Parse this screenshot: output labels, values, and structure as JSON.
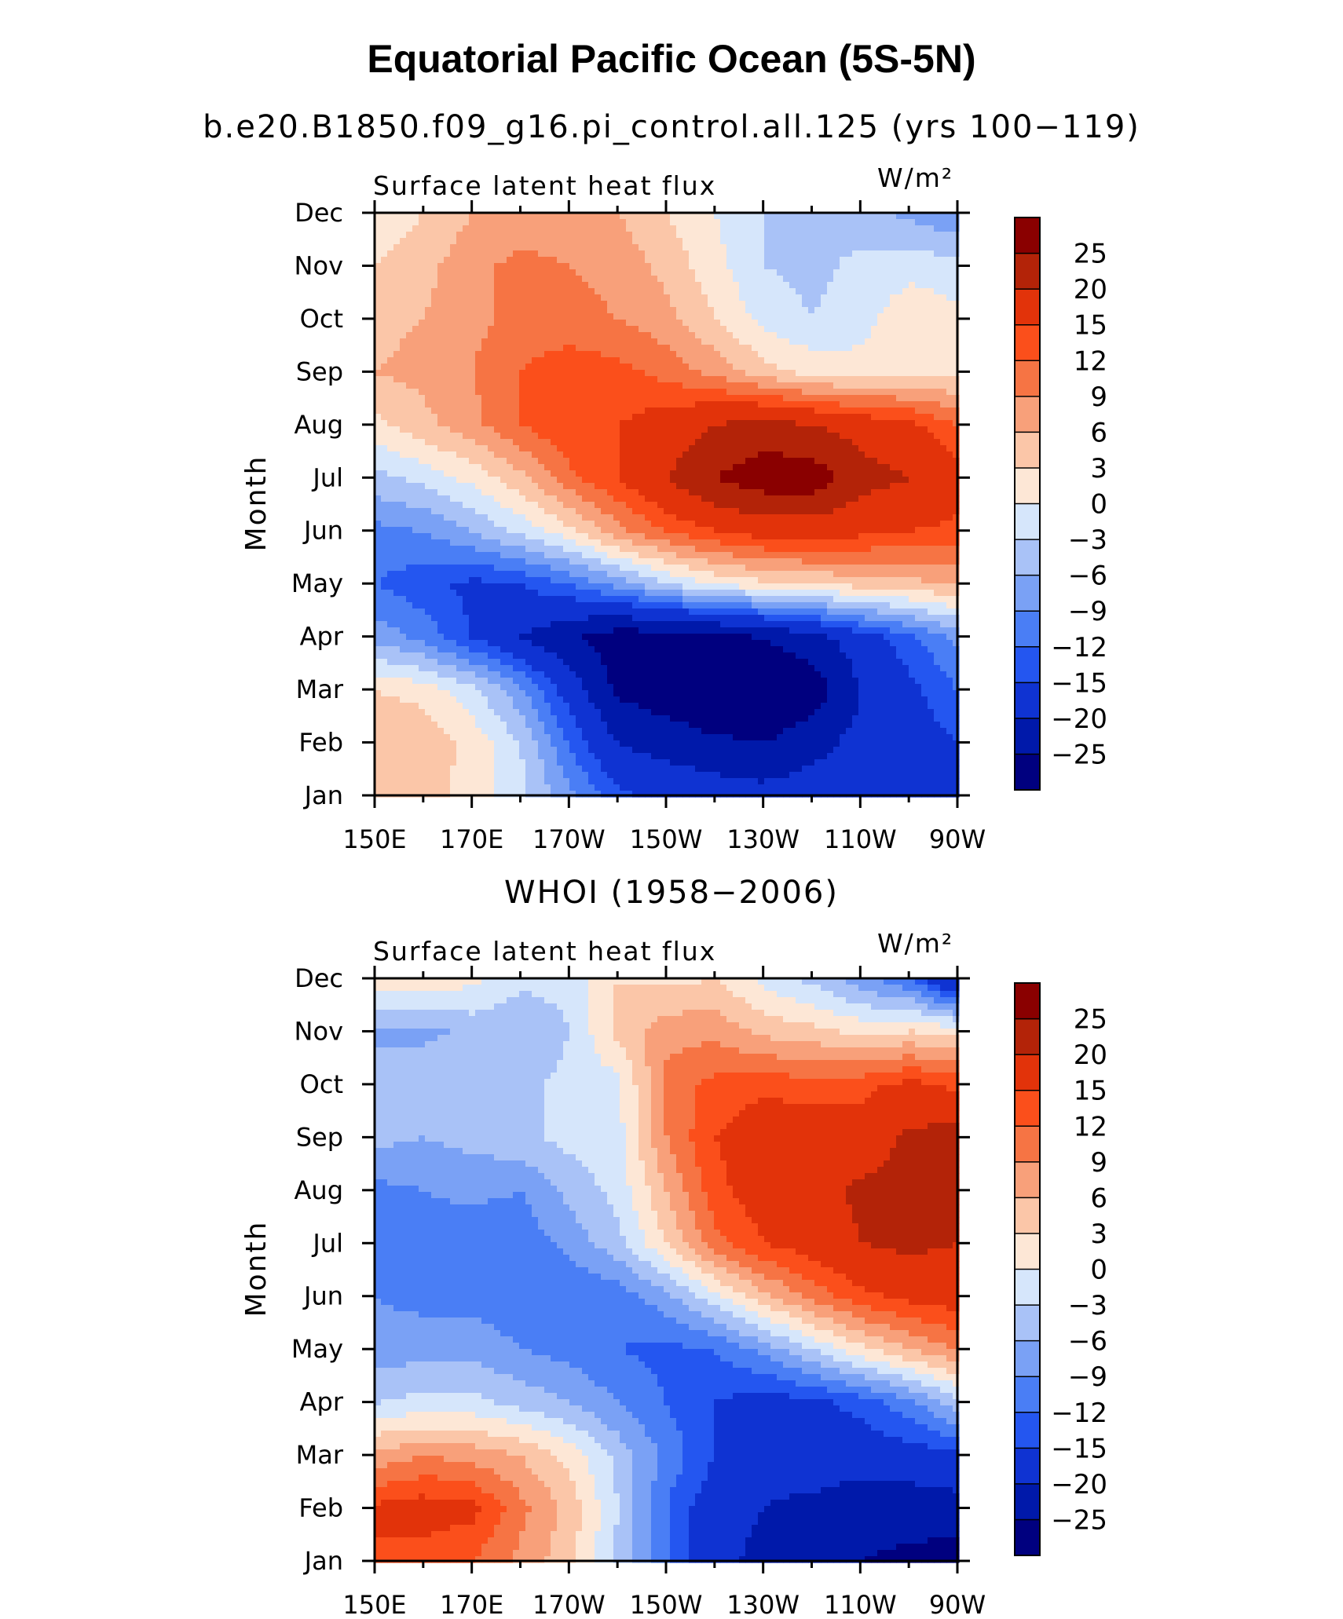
{
  "title": "Equatorial Pacific Ocean (5S-5N)",
  "palette": [
    "#00007f",
    "#0019aa",
    "#0f33d2",
    "#2456f0",
    "#4a7ef5",
    "#7aa1f5",
    "#a9c2f7",
    "#d6e6fb",
    "#fde7d6",
    "#fbc6a8",
    "#f8a07a",
    "#f67444",
    "#fb4f1b",
    "#e2330a",
    "#b32308",
    "#8a0000"
  ],
  "levels": [
    -25,
    -20,
    -15,
    -12,
    -9,
    -6,
    -3,
    0,
    3,
    6,
    9,
    12,
    15,
    20,
    25
  ],
  "colorbar_labels": [
    "25",
    "20",
    "15",
    "12",
    "9",
    "6",
    "3",
    "0",
    "−3",
    "−6",
    "−9",
    "−12",
    "−15",
    "−20",
    "−25"
  ],
  "chart_data": [
    {
      "type": "heatmap",
      "title": "b.e20.B1850.f09_g16.pi_control.all.125 (yrs 100−119)",
      "left_label": "Surface latent heat flux",
      "units": "W/m²",
      "ylabel": "Month",
      "xticks": [
        "150E",
        "170E",
        "170W",
        "150W",
        "130W",
        "110W",
        "90W"
      ],
      "yticks": [
        "Jan",
        "Feb",
        "Mar",
        "Apr",
        "May",
        "Jun",
        "Jul",
        "Aug",
        "Sep",
        "Oct",
        "Nov",
        "Dec"
      ],
      "x_lon": [
        150,
        160,
        170,
        180,
        190,
        200,
        210,
        220,
        230,
        240,
        250,
        260,
        270
      ],
      "z_range": [
        -25,
        25
      ],
      "z": [
        [
          5,
          4,
          2,
          -2,
          -8,
          -14,
          -16,
          -17,
          -18,
          -17,
          -16,
          -16,
          -15
        ],
        [
          6,
          5,
          2,
          -3,
          -12,
          -20,
          -22,
          -24,
          -25,
          -22,
          -18,
          -17,
          -15
        ],
        [
          3,
          2,
          -2,
          -8,
          -17,
          -26,
          -28,
          -30,
          -30,
          -28,
          -20,
          -16,
          -12
        ],
        [
          -7,
          -10,
          -15,
          -20,
          -24,
          -28,
          -28,
          -27,
          -25,
          -22,
          -17,
          -13,
          -8
        ],
        [
          -12,
          -14,
          -16,
          -15,
          -12,
          -8,
          -3,
          0,
          2,
          3,
          4,
          5,
          6
        ],
        [
          -10,
          -9,
          -6,
          -2,
          2,
          8,
          12,
          15,
          17,
          17,
          16,
          15,
          14
        ],
        [
          -4,
          -2,
          1,
          5,
          11,
          15,
          20,
          25,
          28,
          28,
          22,
          20,
          17
        ],
        [
          2,
          5,
          8,
          12,
          15,
          15,
          17,
          20,
          22,
          20,
          18,
          16,
          12
        ],
        [
          6,
          7,
          9,
          12,
          14,
          13,
          11,
          8,
          4,
          2,
          1,
          2,
          2
        ],
        [
          5,
          6,
          8,
          10,
          10,
          9,
          7,
          3,
          -1,
          -3,
          -1,
          2,
          1
        ],
        [
          3,
          5,
          8,
          10,
          9,
          8,
          5,
          1,
          -3,
          -4,
          -2,
          -1,
          -2
        ],
        [
          0,
          3,
          6,
          7,
          7,
          6,
          3,
          0,
          -3,
          -4,
          -5,
          -7,
          -9
        ]
      ]
    },
    {
      "type": "heatmap",
      "title": "WHOI (1958−2006)",
      "left_label": "Surface latent heat flux",
      "units": "W/m²",
      "ylabel": "Month",
      "xticks": [
        "150E",
        "170E",
        "170W",
        "150W",
        "130W",
        "110W",
        "90W"
      ],
      "yticks": [
        "Jan",
        "Feb",
        "Mar",
        "Apr",
        "May",
        "Jun",
        "Jul",
        "Aug",
        "Sep",
        "Oct",
        "Nov",
        "Dec"
      ],
      "x_lon": [
        150,
        160,
        170,
        180,
        190,
        200,
        210,
        220,
        230,
        240,
        250,
        260,
        270
      ],
      "z_range": [
        -25,
        25
      ],
      "z": [
        [
          14,
          13,
          12,
          8,
          4,
          -4,
          -12,
          -18,
          -22,
          -24,
          -25,
          -26,
          -28
        ],
        [
          16,
          17,
          16,
          10,
          5,
          -3,
          -12,
          -18,
          -20,
          -22,
          -24,
          -23,
          -22
        ],
        [
          7,
          9,
          8,
          6,
          2,
          -4,
          -10,
          -15,
          -18,
          -16,
          -17,
          -17,
          -16
        ],
        [
          -3,
          -2,
          -2,
          -4,
          -6,
          -9,
          -12,
          -15,
          -17,
          -16,
          -14,
          -10,
          -4
        ],
        [
          -8,
          -7,
          -7,
          -9,
          -10,
          -12,
          -13,
          -12,
          -8,
          -3,
          2,
          6,
          9
        ],
        [
          -9,
          -10,
          -10,
          -11,
          -12,
          -11,
          -7,
          -1,
          5,
          10,
          14,
          16,
          17
        ],
        [
          -12,
          -10,
          -12,
          -11,
          -8,
          -4,
          3,
          11,
          15,
          17,
          20,
          21,
          20
        ],
        [
          -10,
          -9,
          -8,
          -9,
          -5,
          -2,
          6,
          14,
          17,
          18,
          21,
          22,
          21
        ],
        [
          -5,
          -6,
          -5,
          -4,
          -2,
          -1,
          9,
          15,
          18,
          18,
          17,
          21,
          22
        ],
        [
          -3,
          -3,
          -5,
          -4,
          -2,
          -1,
          10,
          13,
          14,
          13,
          14,
          16,
          14
        ],
        [
          -7,
          -7,
          -5,
          -6,
          -3,
          4,
          8,
          8,
          5,
          4,
          2,
          3,
          2
        ],
        [
          3,
          2,
          1,
          -2,
          -2,
          3,
          2,
          3,
          -1,
          -4,
          -8,
          -12,
          -22
        ]
      ]
    }
  ]
}
